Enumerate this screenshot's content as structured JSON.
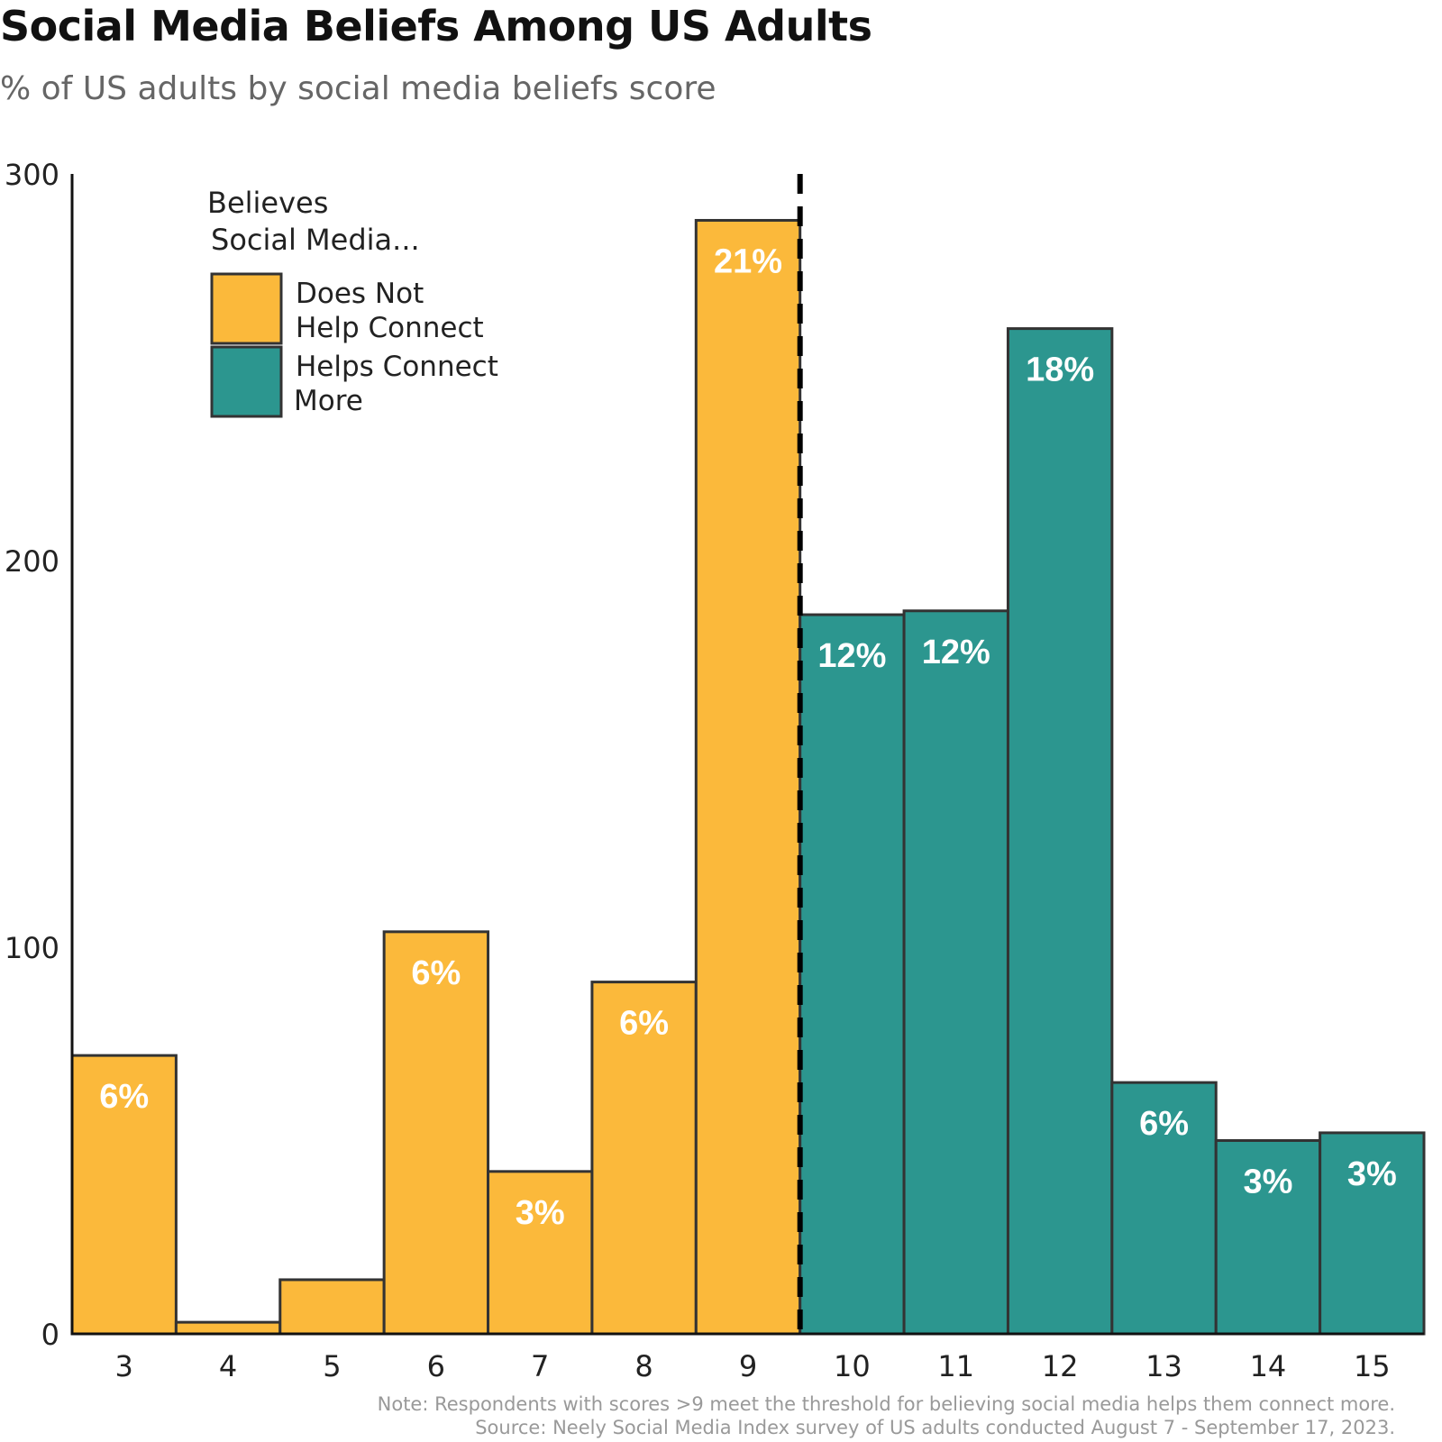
{
  "title": "Social Media Beliefs Among US Adults",
  "subtitle": "% of US adults by social media beliefs score",
  "chart_data": {
    "type": "bar",
    "categories": [
      "3",
      "4",
      "5",
      "6",
      "7",
      "8",
      "9",
      "10",
      "11",
      "12",
      "13",
      "14",
      "15"
    ],
    "values": [
      72,
      3,
      14,
      104,
      42,
      91,
      288,
      186,
      187,
      260,
      65,
      50,
      52
    ],
    "data_labels": [
      "6%",
      "",
      "",
      "6%",
      "3%",
      "6%",
      "21%",
      "12%",
      "12%",
      "18%",
      "6%",
      "3%",
      "3%"
    ],
    "groups": [
      "Does Not Help Connect",
      "Does Not Help Connect",
      "Does Not Help Connect",
      "Does Not Help Connect",
      "Does Not Help Connect",
      "Does Not Help Connect",
      "Does Not Help Connect",
      "Helps Connect More",
      "Helps Connect More",
      "Helps Connect More",
      "Helps Connect More",
      "Helps Connect More",
      "Helps Connect More"
    ],
    "ylim": [
      0,
      300
    ],
    "yticks": [
      0,
      100,
      200,
      300
    ],
    "threshold_after_category": "9",
    "legend": {
      "title_lines": [
        "Believes",
        "Social Media..."
      ],
      "placement": "top-left",
      "items": [
        {
          "lines": [
            "Does Not",
            "Help Connect"
          ],
          "color": "#FBB93B"
        },
        {
          "lines": [
            "Helps Connect",
            "More"
          ],
          "color": "#2C968F"
        }
      ]
    },
    "grid": false
  },
  "colors": {
    "does_not_help": "#FBB93B",
    "helps": "#2C968F",
    "bar_outline": "#333333"
  },
  "notes": {
    "note": "Note: Respondents with scores >9 meet the threshold for believing social media helps them connect more.",
    "source": "Source: Neely Social Media Index survey of US adults conducted August 7 - September 17, 2023."
  }
}
